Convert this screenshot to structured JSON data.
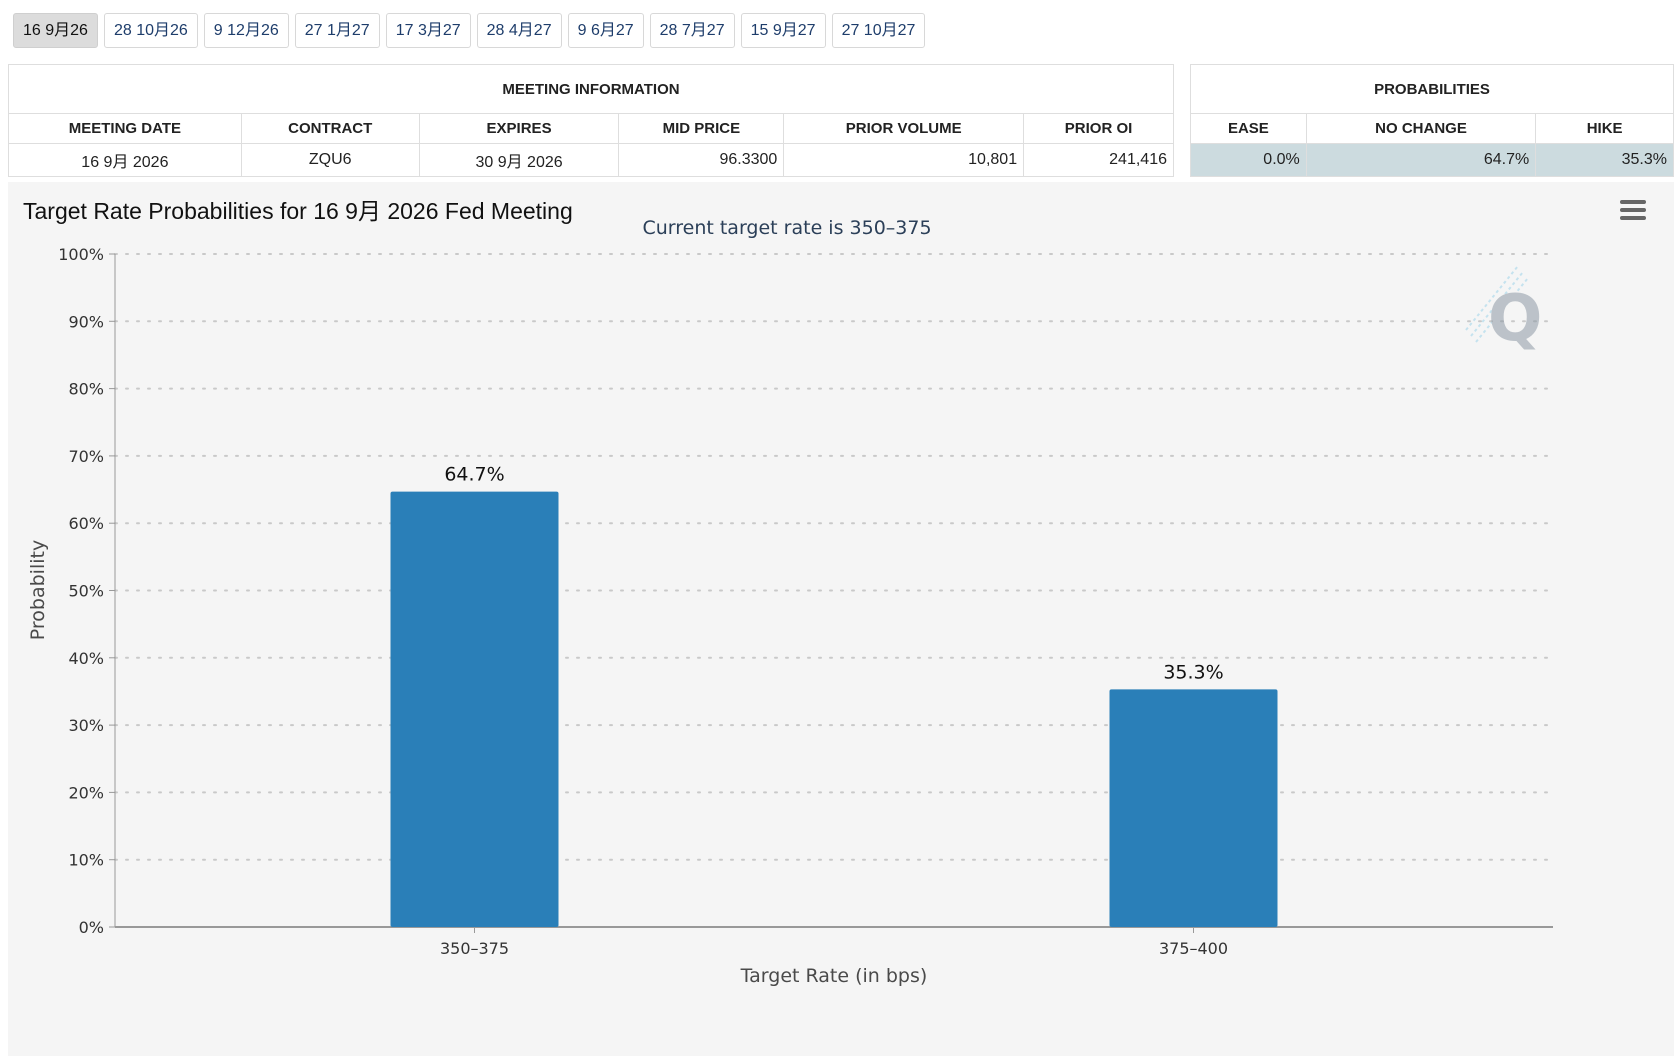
{
  "date_tabs": [
    {
      "label": "16 9月26",
      "active": true
    },
    {
      "label": "28 10月26",
      "active": false
    },
    {
      "label": "9 12月26",
      "active": false
    },
    {
      "label": "27 1月27",
      "active": false
    },
    {
      "label": "17 3月27",
      "active": false
    },
    {
      "label": "28 4月27",
      "active": false
    },
    {
      "label": "9 6月27",
      "active": false
    },
    {
      "label": "28 7月27",
      "active": false
    },
    {
      "label": "15 9月27",
      "active": false
    },
    {
      "label": "27 10月27",
      "active": false
    }
  ],
  "meeting_info": {
    "title": "MEETING INFORMATION",
    "headers": [
      "MEETING DATE",
      "CONTRACT",
      "EXPIRES",
      "MID PRICE",
      "PRIOR VOLUME",
      "PRIOR OI"
    ],
    "row": [
      "16 9月 2026",
      "ZQU6",
      "30 9月 2026",
      "96.3300",
      "10,801",
      "241,416"
    ]
  },
  "probabilities": {
    "title": "PROBABILITIES",
    "headers": [
      "EASE",
      "NO CHANGE",
      "HIKE"
    ],
    "row": [
      "0.0%",
      "64.7%",
      "35.3%"
    ]
  },
  "chart": {
    "title": "Target Rate Probabilities for 16 9月 2026 Fed Meeting",
    "watermark": "Q"
  },
  "chart_data": {
    "type": "bar",
    "title": "Target Rate Probabilities for 16 9月 2026 Fed Meeting",
    "subtitle": "Current target rate is 350–375",
    "categories": [
      "350–375",
      "375–400"
    ],
    "values": [
      64.7,
      35.3
    ],
    "data_labels": [
      "64.7%",
      "35.3%"
    ],
    "xlabel": "Target Rate (in bps)",
    "ylabel": "Probability",
    "ylim": [
      0,
      100
    ],
    "yticks": [
      "0%",
      "10%",
      "20%",
      "30%",
      "40%",
      "50%",
      "60%",
      "70%",
      "80%",
      "90%",
      "100%"
    ],
    "grid": true,
    "legend": "none",
    "bar_color": "#2a7fb8"
  }
}
